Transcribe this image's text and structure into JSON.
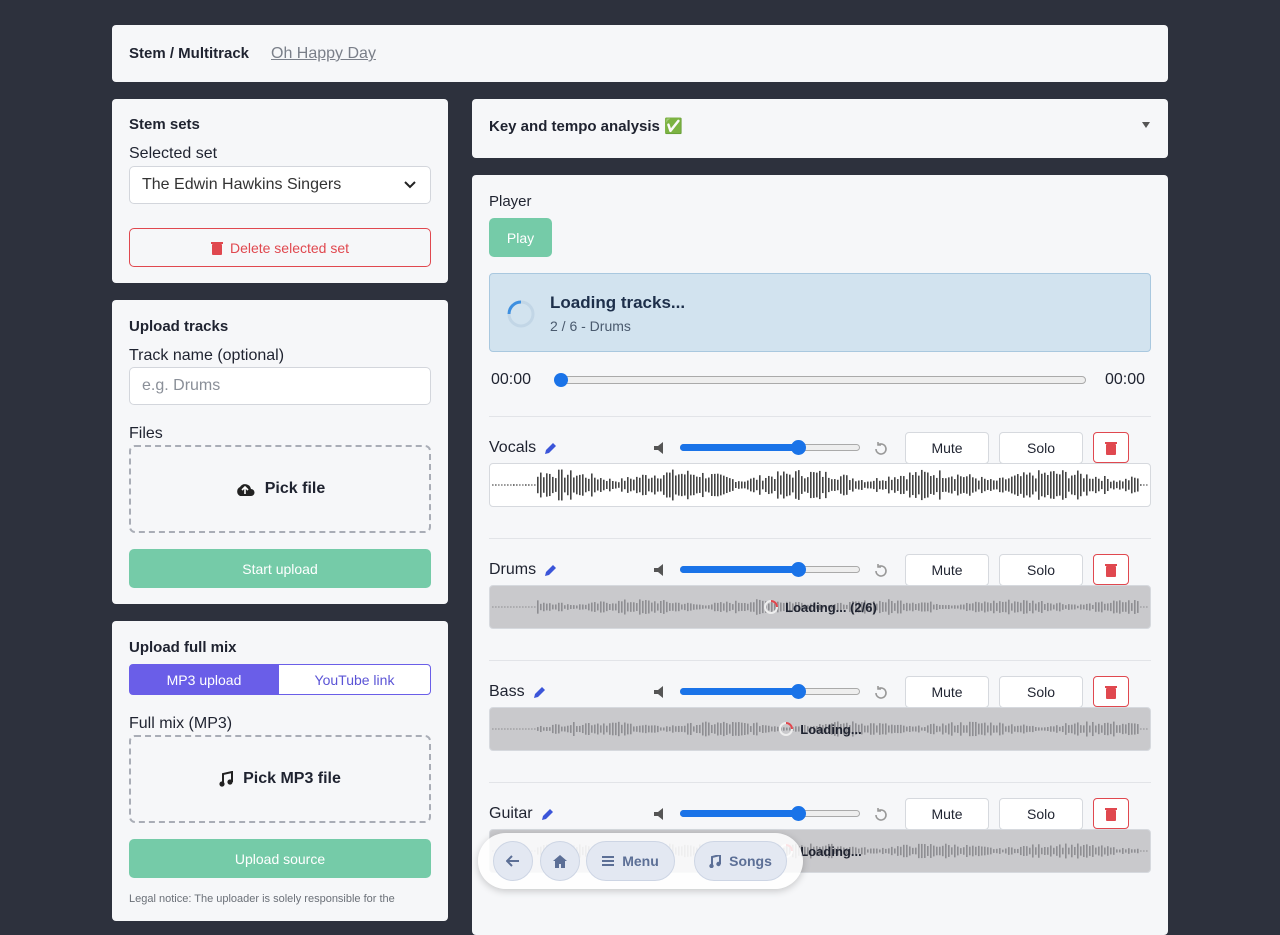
{
  "header": {
    "title": "Stem / Multitrack",
    "song": "Oh Happy Day"
  },
  "stem_sets": {
    "title": "Stem sets",
    "label": "Selected set",
    "selected": "The Edwin Hawkins Singers",
    "delete": "Delete selected set"
  },
  "upload_tracks": {
    "title": "Upload tracks",
    "name_label": "Track name (optional)",
    "name_placeholder": "e.g. Drums",
    "files_label": "Files",
    "pick": "Pick file",
    "start": "Start upload"
  },
  "upload_mix": {
    "title": "Upload full mix",
    "tabs": [
      "MP3 upload",
      "YouTube link"
    ],
    "file_label": "Full mix (MP3)",
    "pick": "Pick MP3 file",
    "upload": "Upload source",
    "legal": "Legal notice: The uploader is solely responsible for the"
  },
  "analysis": {
    "title": "Key and tempo analysis ✅"
  },
  "player": {
    "title": "Player",
    "play": "Play",
    "loading_title": "Loading tracks...",
    "loading_detail": "2 / 6 - Drums",
    "time_current": "00:00",
    "time_total": "00:00",
    "tracks": [
      {
        "name": "Vocals",
        "mute": "Mute",
        "solo": "Solo"
      },
      {
        "name": "Drums",
        "mute": "Mute",
        "solo": "Solo",
        "loading": "Loading... (2/6)"
      },
      {
        "name": "Bass",
        "mute": "Mute",
        "solo": "Solo",
        "loading": "Loading..."
      },
      {
        "name": "Guitar",
        "mute": "Mute",
        "solo": "Solo",
        "loading": "Loading..."
      }
    ]
  },
  "nav": {
    "menu": "Menu",
    "songs": "Songs"
  }
}
